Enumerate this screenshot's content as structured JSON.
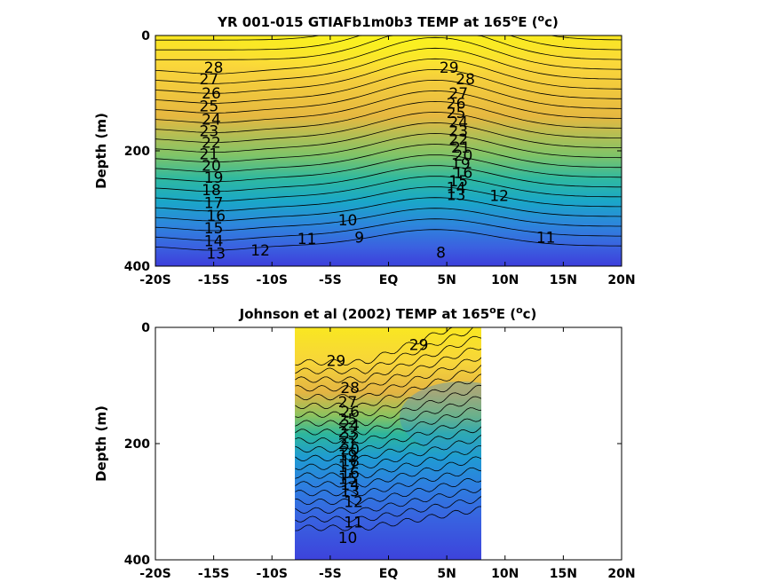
{
  "chart_data": [
    {
      "type": "heatmap",
      "title": "YR 001-015 GTIAFb1m0b3 TEMP at 165",
      "title_superscript": "o",
      "title_suffix": "E (",
      "title_unit_superscript": "o",
      "title_end": "c)",
      "xlabel": "",
      "ylabel": "Depth (m)",
      "xlim": [
        -20,
        20
      ],
      "ylim": [
        0,
        400
      ],
      "y_reversed": true,
      "data_extent_lat": [
        -20,
        20
      ],
      "x_ticks": [
        -20,
        -15,
        -10,
        -5,
        0,
        5,
        10,
        15,
        20
      ],
      "x_tick_labels": [
        "-20S",
        "-15S",
        "-10S",
        "-5S",
        "EQ",
        "5N",
        "10N",
        "15N",
        "20N"
      ],
      "y_ticks": [
        0,
        200,
        400
      ],
      "y_tick_labels": [
        "0",
        "200",
        "400"
      ],
      "colormap": "parula",
      "contour_labels": [
        {
          "text": "28",
          "lat": -15.0,
          "depth": 55
        },
        {
          "text": "27",
          "lat": -15.4,
          "depth": 75
        },
        {
          "text": "26",
          "lat": -15.2,
          "depth": 100
        },
        {
          "text": "25",
          "lat": -15.4,
          "depth": 122
        },
        {
          "text": "24",
          "lat": -15.2,
          "depth": 145
        },
        {
          "text": "23",
          "lat": -15.4,
          "depth": 165
        },
        {
          "text": "22",
          "lat": -15.2,
          "depth": 185
        },
        {
          "text": "21",
          "lat": -15.4,
          "depth": 205
        },
        {
          "text": "20",
          "lat": -15.2,
          "depth": 225
        },
        {
          "text": "19",
          "lat": -15.0,
          "depth": 246
        },
        {
          "text": "18",
          "lat": -15.2,
          "depth": 268
        },
        {
          "text": "17",
          "lat": -15.0,
          "depth": 290
        },
        {
          "text": "16",
          "lat": -14.8,
          "depth": 312
        },
        {
          "text": "15",
          "lat": -15.0,
          "depth": 334
        },
        {
          "text": "14",
          "lat": -15.0,
          "depth": 356
        },
        {
          "text": "13",
          "lat": -14.8,
          "depth": 378
        },
        {
          "text": "12",
          "lat": -11.0,
          "depth": 372
        },
        {
          "text": "11",
          "lat": -7.0,
          "depth": 352
        },
        {
          "text": "10",
          "lat": -3.5,
          "depth": 320
        },
        {
          "text": "9",
          "lat": -2.5,
          "depth": 350
        },
        {
          "text": "8",
          "lat": 4.5,
          "depth": 376
        },
        {
          "text": "29",
          "lat": 5.2,
          "depth": 55
        },
        {
          "text": "28",
          "lat": 6.6,
          "depth": 75
        },
        {
          "text": "27",
          "lat": 6.0,
          "depth": 100
        },
        {
          "text": "26",
          "lat": 5.8,
          "depth": 118
        },
        {
          "text": "25",
          "lat": 5.8,
          "depth": 134
        },
        {
          "text": "24",
          "lat": 6.0,
          "depth": 150
        },
        {
          "text": "23",
          "lat": 6.0,
          "depth": 165
        },
        {
          "text": "22",
          "lat": 6.0,
          "depth": 180
        },
        {
          "text": "21",
          "lat": 6.2,
          "depth": 194
        },
        {
          "text": "20",
          "lat": 6.4,
          "depth": 208
        },
        {
          "text": "19",
          "lat": 6.2,
          "depth": 222
        },
        {
          "text": "16",
          "lat": 6.4,
          "depth": 238
        },
        {
          "text": "15",
          "lat": 6.0,
          "depth": 252
        },
        {
          "text": "14",
          "lat": 5.8,
          "depth": 264
        },
        {
          "text": "13",
          "lat": 5.8,
          "depth": 276
        },
        {
          "text": "12",
          "lat": 9.5,
          "depth": 278
        },
        {
          "text": "11",
          "lat": 13.5,
          "depth": 350
        }
      ]
    },
    {
      "type": "heatmap",
      "title": "Johnson et al (2002) TEMP at 165",
      "title_superscript": "o",
      "title_suffix": "E (",
      "title_unit_superscript": "o",
      "title_end": "c)",
      "xlabel": "",
      "ylabel": "Depth (m)",
      "xlim": [
        -20,
        20
      ],
      "ylim": [
        0,
        400
      ],
      "y_reversed": true,
      "data_extent_lat": [
        -8,
        8
      ],
      "x_ticks": [
        -20,
        -15,
        -10,
        -5,
        0,
        5,
        10,
        15,
        20
      ],
      "x_tick_labels": [
        "-20S",
        "-15S",
        "-10S",
        "-5S",
        "EQ",
        "5N",
        "10N",
        "15N",
        "20N"
      ],
      "y_ticks": [
        0,
        200,
        400
      ],
      "y_tick_labels": [
        "0",
        "200",
        "400"
      ],
      "colormap": "parula",
      "contour_labels": [
        {
          "text": "29",
          "lat": -4.5,
          "depth": 57
        },
        {
          "text": "29",
          "lat": 2.6,
          "depth": 30
        },
        {
          "text": "28",
          "lat": -3.3,
          "depth": 104
        },
        {
          "text": "27",
          "lat": -3.5,
          "depth": 128
        },
        {
          "text": "26",
          "lat": -3.3,
          "depth": 145
        },
        {
          "text": "25",
          "lat": -3.5,
          "depth": 158
        },
        {
          "text": "24",
          "lat": -3.3,
          "depth": 168
        },
        {
          "text": "23",
          "lat": -3.5,
          "depth": 180
        },
        {
          "text": "22",
          "lat": -3.3,
          "depth": 190
        },
        {
          "text": "21",
          "lat": -3.5,
          "depth": 200
        },
        {
          "text": "20",
          "lat": -3.3,
          "depth": 210
        },
        {
          "text": "19",
          "lat": -3.5,
          "depth": 220
        },
        {
          "text": "18",
          "lat": -3.3,
          "depth": 230
        },
        {
          "text": "17",
          "lat": -3.5,
          "depth": 240
        },
        {
          "text": "16",
          "lat": -3.3,
          "depth": 250
        },
        {
          "text": "15",
          "lat": -3.5,
          "depth": 260
        },
        {
          "text": "14",
          "lat": -3.3,
          "depth": 270
        },
        {
          "text": "13",
          "lat": -3.3,
          "depth": 282
        },
        {
          "text": "12",
          "lat": -3.0,
          "depth": 300
        },
        {
          "text": "11",
          "lat": -3.0,
          "depth": 335
        },
        {
          "text": "10",
          "lat": -3.5,
          "depth": 362
        }
      ]
    }
  ]
}
